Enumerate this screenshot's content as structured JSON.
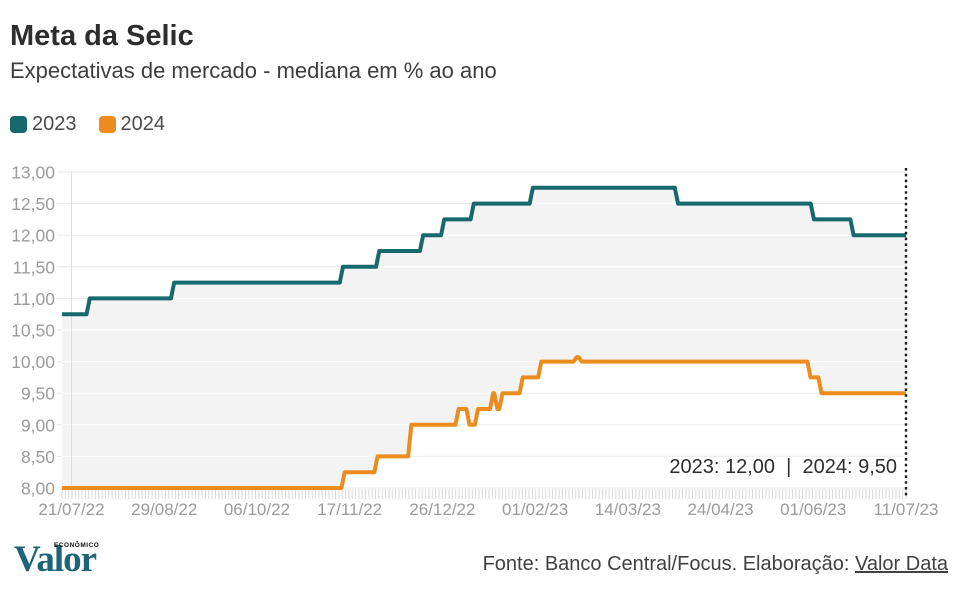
{
  "header": {
    "title": "Meta da Selic",
    "subtitle": "Expectativas de mercado - mediana em % ao ano"
  },
  "legend": {
    "items": [
      {
        "label": "2023",
        "color": "#17696e"
      },
      {
        "label": "2024",
        "color": "#ec8c1e"
      }
    ]
  },
  "chart_data": {
    "type": "line",
    "step": true,
    "title": "Meta da Selic",
    "subtitle": "Expectativas de mercado - mediana em % ao ano",
    "unit": "% ao ano",
    "grid": true,
    "legend_position": "top-left",
    "ylim": [
      8,
      13
    ],
    "ytick_step": 0.5,
    "ytick_labels": [
      "13,00",
      "12,50",
      "12,00",
      "11,50",
      "11,00",
      "10,50",
      "10,00",
      "9,50",
      "9,00",
      "8,50",
      "8,00"
    ],
    "xtick_labels": [
      "21/07/22",
      "29/08/22",
      "06/10/22",
      "17/11/22",
      "26/12/22",
      "01/02/23",
      "14/03/23",
      "24/04/23",
      "01/06/23",
      "11/07/23"
    ],
    "series": [
      {
        "name": "2023",
        "color": "#17696e",
        "final_value": "12,00",
        "steps": [
          [
            0.0,
            10.75
          ],
          [
            0.031,
            11.0
          ],
          [
            0.131,
            11.25
          ],
          [
            0.331,
            11.5
          ],
          [
            0.374,
            11.75
          ],
          [
            0.426,
            12.0
          ],
          [
            0.451,
            12.25
          ],
          [
            0.486,
            12.5
          ],
          [
            0.556,
            12.75
          ],
          [
            0.728,
            12.5
          ],
          [
            0.889,
            12.25
          ],
          [
            0.936,
            12.0
          ]
        ]
      },
      {
        "name": "2024",
        "color": "#ec8c1e",
        "final_value": "9,50",
        "steps": [
          [
            0.0,
            8.0
          ],
          [
            0.333,
            8.25
          ],
          [
            0.372,
            8.5
          ],
          [
            0.412,
            9.0
          ],
          [
            0.468,
            9.25
          ],
          [
            0.481,
            9.0
          ],
          [
            0.491,
            9.25
          ],
          [
            0.509,
            9.5
          ],
          [
            0.514,
            9.25
          ],
          [
            0.52,
            9.5
          ],
          [
            0.544,
            9.75
          ],
          [
            0.566,
            10.0
          ],
          [
            0.608,
            10.07
          ],
          [
            0.614,
            10.0
          ],
          [
            0.885,
            9.75
          ],
          [
            0.898,
            9.5
          ]
        ]
      }
    ],
    "end_marker": {
      "style": "dotted-vertical-line",
      "position": "last-x"
    }
  },
  "annotation": {
    "text": "2023: 12,00  |  2024: 9,50"
  },
  "footer": {
    "logo_text": "Valor",
    "logo_superscript": "ECONÔMICO",
    "source_text": "Fonte: Banco Central/Focus. Elaboração: ",
    "source_link": "Valor Data"
  },
  "colors": {
    "grid": "#e7e7e7",
    "grid_on_fill": "#ffffff",
    "grid_on_white_fill": "#ececec",
    "axis_text": "#9b9b9b",
    "fill_under_2023": "#f3f3f3",
    "fill_under_2024": "#ffffff",
    "minor_tick": "#d9d9d9",
    "first_tick_line": "#dedede",
    "end_line": "#1f1f1f"
  }
}
